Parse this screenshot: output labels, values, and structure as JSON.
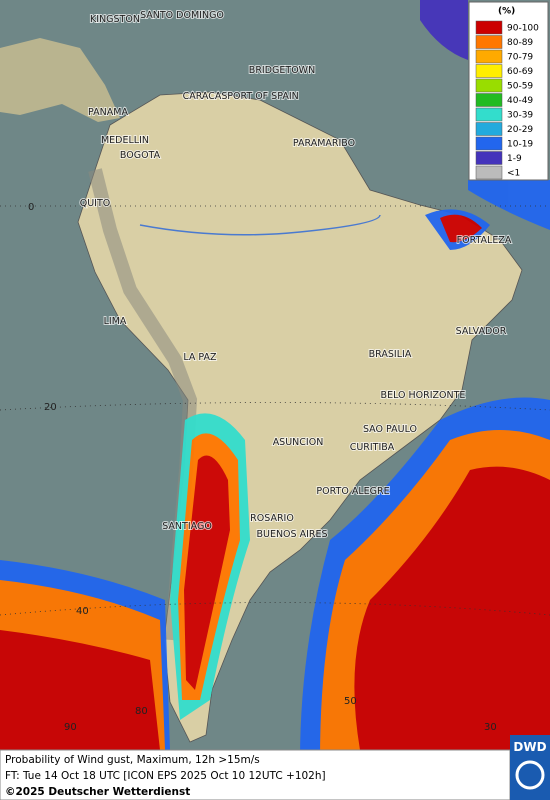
{
  "legend": {
    "title": "(%)",
    "items": [
      {
        "label": "90-100",
        "color": "#cc0000"
      },
      {
        "label": "80-89",
        "color": "#ff7700"
      },
      {
        "label": "70-79",
        "color": "#ffaa00"
      },
      {
        "label": "60-69",
        "color": "#ffee00"
      },
      {
        "label": "50-59",
        "color": "#99dd00"
      },
      {
        "label": "40-49",
        "color": "#22bb22"
      },
      {
        "label": "30-39",
        "color": "#33ddcc"
      },
      {
        "label": "20-29",
        "color": "#22aadd"
      },
      {
        "label": "10-19",
        "color": "#2266ee"
      },
      {
        "label": "1-9",
        "color": "#4433bb"
      },
      {
        "label": "<1",
        "color": "#bbbbbb"
      }
    ]
  },
  "cities": [
    "KINGSTON",
    "SANTO DOMINGO",
    "BRIDGETOWN",
    "CARACAS",
    "PORT OF SPAIN",
    "PANAMA",
    "MEDELLIN",
    "BOGOTA",
    "PARAMARIBO",
    "QUITO",
    "FORTALEZA",
    "LIMA",
    "SALVADOR",
    "BRASILIA",
    "LA PAZ",
    "BELO HORIZONTE",
    "SAO PAULO",
    "ASUNCION",
    "CURITIBA",
    "PORTO ALEGRE",
    "ROSARIO",
    "SANTIAGO",
    "BUENOS AIRES"
  ],
  "grid_labels": [
    "0",
    "20",
    "40",
    "90",
    "80",
    "50",
    "30"
  ],
  "footer": {
    "line1": "Probability of Wind gust, Maximum, 12h >15m/s",
    "line2": "FT: Tue 14 Oct 18 UTC [ICON EPS 2025 Oct 10 12UTC +102h]",
    "line3": "©2025 Deutscher Wetterdienst"
  },
  "logo": "DWD"
}
